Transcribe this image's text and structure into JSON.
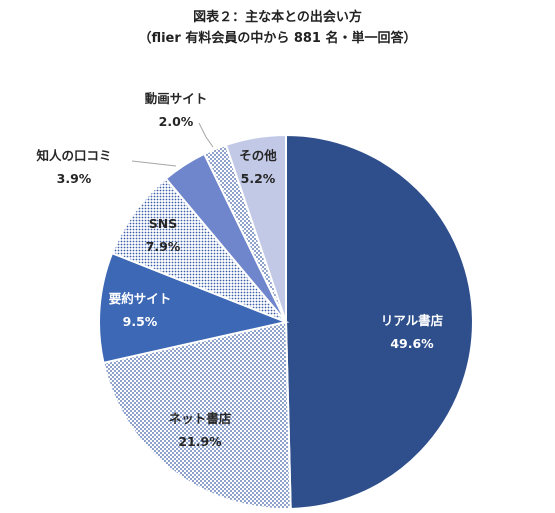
{
  "chart_data": {
    "type": "pie",
    "title": "図表２：主な本との出会い方",
    "subtitle": "（flier 有料会員の中から 881 名・単一回答）",
    "slices": [
      {
        "label": "リアル書店",
        "value_label": "49.6%",
        "value": 49.6,
        "fill": "#2e4f8c",
        "pattern": "solid",
        "label_color": "#ffffff"
      },
      {
        "label": "ネット書店",
        "value_label": "21.9%",
        "value": 21.9,
        "fill": "#c4cce6",
        "pattern": "dots",
        "label_color": "#262626"
      },
      {
        "label": "要約サイト",
        "value_label": "9.5%",
        "value": 9.5,
        "fill": "#3d68b5",
        "pattern": "solid",
        "label_color": "#ffffff"
      },
      {
        "label": "SNS",
        "value_label": "7.9%",
        "value": 7.9,
        "fill": "#a9b8e0",
        "pattern": "dots",
        "label_color": "#262626"
      },
      {
        "label": "知人の口コミ",
        "value_label": "3.9%",
        "value": 3.9,
        "fill": "#6f86cc",
        "pattern": "solid",
        "label_color": "#262626"
      },
      {
        "label": "動画サイト",
        "value_label": "2.0%",
        "value": 2.0,
        "fill": "#ccd4ec",
        "pattern": "dots",
        "label_color": "#262626"
      },
      {
        "label": "その他",
        "value_label": "5.2%",
        "value": 5.2,
        "fill": "#c2c9e6",
        "pattern": "solid",
        "label_color": "#262626"
      }
    ],
    "legend": "none",
    "colors": {
      "border": "#ffffff",
      "leader_line": "#a6a6a6"
    }
  }
}
